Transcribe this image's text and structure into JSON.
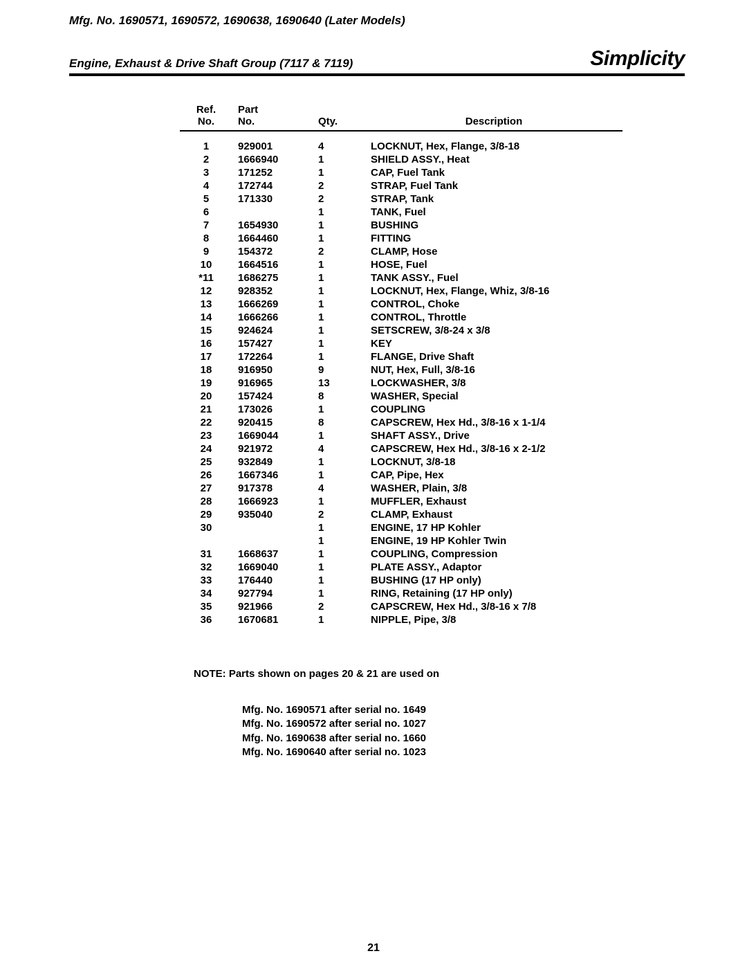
{
  "header": {
    "models_line": "Mfg. No. 1690571, 1690572, 1690638, 1690640 (Later Models)",
    "group_line": "Engine, Exhaust & Drive Shaft Group (7117 & 7119)",
    "brand": "Simplicity"
  },
  "table": {
    "columns": {
      "ref_line1": "Ref.",
      "ref_line2": "No.",
      "part_line1": "Part",
      "part_line2": "No.",
      "qty": "Qty.",
      "desc": "Description"
    },
    "rows": [
      {
        "ref": "1",
        "part": "929001",
        "qty": "4",
        "desc": "LOCKNUT, Hex, Flange, 3/8-18"
      },
      {
        "ref": "2",
        "part": "1666940",
        "qty": "1",
        "desc": "SHIELD ASSY., Heat"
      },
      {
        "ref": "3",
        "part": "171252",
        "qty": "1",
        "desc": "CAP, Fuel Tank"
      },
      {
        "ref": "4",
        "part": "172744",
        "qty": "2",
        "desc": "STRAP, Fuel Tank"
      },
      {
        "ref": "5",
        "part": "171330",
        "qty": "2",
        "desc": "STRAP, Tank"
      },
      {
        "ref": "6",
        "part": "",
        "qty": "1",
        "desc": "TANK, Fuel"
      },
      {
        "ref": "7",
        "part": "1654930",
        "qty": "1",
        "desc": "BUSHING"
      },
      {
        "ref": "8",
        "part": "1664460",
        "qty": "1",
        "desc": "FITTING"
      },
      {
        "ref": "9",
        "part": "154372",
        "qty": "2",
        "desc": "CLAMP, Hose"
      },
      {
        "ref": "10",
        "part": "1664516",
        "qty": "1",
        "desc": "HOSE, Fuel"
      },
      {
        "ref": "*11",
        "part": "1686275",
        "qty": "1",
        "desc": "TANK ASSY., Fuel"
      },
      {
        "ref": "12",
        "part": "928352",
        "qty": "1",
        "desc": "LOCKNUT, Hex, Flange, Whiz, 3/8-16"
      },
      {
        "ref": "13",
        "part": "1666269",
        "qty": "1",
        "desc": "CONTROL, Choke"
      },
      {
        "ref": "14",
        "part": "1666266",
        "qty": "1",
        "desc": "CONTROL, Throttle"
      },
      {
        "ref": "15",
        "part": "924624",
        "qty": "1",
        "desc": "SETSCREW, 3/8-24 x 3/8"
      },
      {
        "ref": "16",
        "part": "157427",
        "qty": "1",
        "desc": "KEY"
      },
      {
        "ref": "17",
        "part": "172264",
        "qty": "1",
        "desc": "FLANGE, Drive Shaft"
      },
      {
        "ref": "18",
        "part": "916950",
        "qty": "9",
        "desc": "NUT, Hex, Full, 3/8-16"
      },
      {
        "ref": "19",
        "part": "916965",
        "qty": "13",
        "desc": "LOCKWASHER, 3/8"
      },
      {
        "ref": "20",
        "part": "157424",
        "qty": "8",
        "desc": "WASHER, Special"
      },
      {
        "ref": "21",
        "part": "173026",
        "qty": "1",
        "desc": "COUPLING"
      },
      {
        "ref": "22",
        "part": "920415",
        "qty": "8",
        "desc": "CAPSCREW, Hex Hd., 3/8-16 x 1-1/4"
      },
      {
        "ref": "23",
        "part": "1669044",
        "qty": "1",
        "desc": "SHAFT ASSY., Drive"
      },
      {
        "ref": "24",
        "part": "921972",
        "qty": "4",
        "desc": "CAPSCREW, Hex Hd., 3/8-16 x 2-1/2"
      },
      {
        "ref": "25",
        "part": "932849",
        "qty": "1",
        "desc": "LOCKNUT, 3/8-18"
      },
      {
        "ref": "26",
        "part": "1667346",
        "qty": "1",
        "desc": "CAP, Pipe, Hex"
      },
      {
        "ref": "27",
        "part": "917378",
        "qty": "4",
        "desc": "WASHER, Plain, 3/8"
      },
      {
        "ref": "28",
        "part": "1666923",
        "qty": "1",
        "desc": "MUFFLER, Exhaust"
      },
      {
        "ref": "29",
        "part": "935040",
        "qty": "2",
        "desc": "CLAMP, Exhaust"
      },
      {
        "ref": "30",
        "part": "",
        "qty": "1",
        "desc": "ENGINE, 17 HP Kohler"
      },
      {
        "ref": "",
        "part": "",
        "qty": "1",
        "desc": "ENGINE, 19 HP Kohler Twin"
      },
      {
        "ref": "31",
        "part": "1668637",
        "qty": "1",
        "desc": "COUPLING, Compression"
      },
      {
        "ref": "32",
        "part": "1669040",
        "qty": "1",
        "desc": "PLATE ASSY., Adaptor"
      },
      {
        "ref": "33",
        "part": "176440",
        "qty": "1",
        "desc": "BUSHING (17 HP only)"
      },
      {
        "ref": "34",
        "part": "927794",
        "qty": "1",
        "desc": "RING, Retaining (17 HP only)"
      },
      {
        "ref": "35",
        "part": "921966",
        "qty": "2",
        "desc": "CAPSCREW, Hex Hd., 3/8-16 x 7/8"
      },
      {
        "ref": "36",
        "part": "1670681",
        "qty": "1",
        "desc": "NIPPLE, Pipe, 3/8"
      }
    ]
  },
  "note": {
    "heading": "NOTE: Parts shown on pages 20 & 21 are used on",
    "lines": [
      "Mfg. No. 1690571 after serial no. 1649",
      "Mfg. No. 1690572 after serial no. 1027",
      "Mfg. No. 1690638 after serial no. 1660",
      "Mfg. No. 1690640 after serial no. 1023"
    ]
  },
  "page_number": "21"
}
